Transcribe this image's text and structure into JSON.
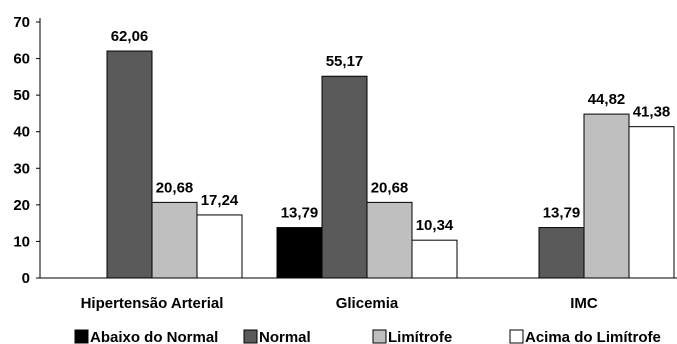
{
  "chart_data": {
    "type": "bar",
    "title": "",
    "xlabel": "",
    "ylabel": "",
    "ylim": [
      0,
      70
    ],
    "yticks": [
      0,
      10,
      20,
      30,
      40,
      50,
      60,
      70
    ],
    "grid": false,
    "legend_position": "bottom",
    "categories": [
      "Hipertensão Arterial",
      "Glicemia",
      "IMC"
    ],
    "series": [
      {
        "name": "Abaixo do Normal",
        "color": "#000000",
        "values": [
          null,
          13.79,
          null
        ],
        "labels": [
          "",
          "13,79",
          ""
        ]
      },
      {
        "name": "Normal",
        "color": "#5a5a5a",
        "values": [
          62.06,
          55.17,
          13.79
        ],
        "labels": [
          "62,06",
          "55,17",
          "13,79"
        ]
      },
      {
        "name": "Limítrofe",
        "color": "#bfbfbf",
        "values": [
          20.68,
          20.68,
          44.82
        ],
        "labels": [
          "20,68",
          "20,68",
          "44,82"
        ]
      },
      {
        "name": "Acima do Limítrofe",
        "color": "#ffffff",
        "values": [
          17.24,
          10.34,
          41.38
        ],
        "labels": [
          "17,24",
          "10,34",
          "41,38"
        ]
      }
    ]
  }
}
